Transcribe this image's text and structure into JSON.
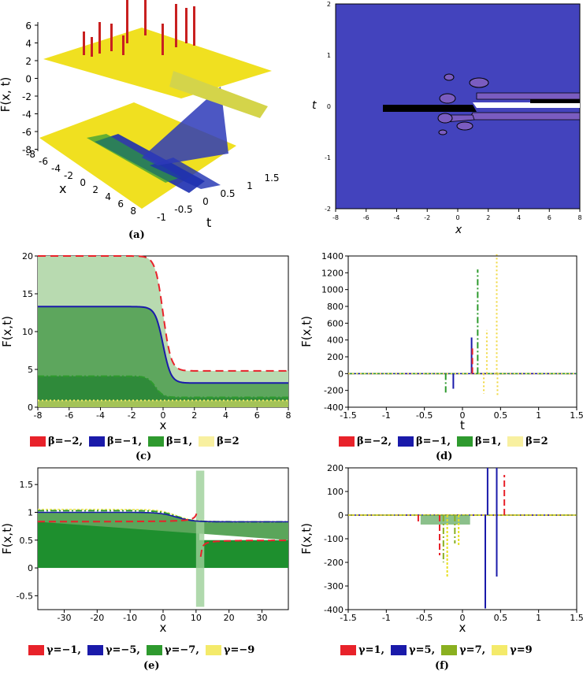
{
  "panels": {
    "a": {
      "caption": "(a)",
      "zlabel": "F(x, t)",
      "xlabel": "x",
      "ylabel": "t",
      "zticks": [
        "6",
        "4",
        "2",
        "0",
        "-2",
        "-4",
        "-6",
        "-8"
      ],
      "xticks": [
        "-8",
        "-6",
        "-4",
        "-2",
        "0",
        "2",
        "4",
        "6",
        "8"
      ],
      "tticks": [
        "1.5",
        "1",
        "0.5",
        "0",
        "-0.5",
        "-1"
      ]
    },
    "b": {
      "xlabel": "x",
      "ylabel": "t",
      "xticks": [
        "-8",
        "-6",
        "-4",
        "-2",
        "0",
        "2",
        "4",
        "6",
        "8"
      ],
      "yticks": [
        "2",
        "1",
        "0",
        "-1",
        "-2"
      ]
    },
    "c": {
      "caption": "(c)",
      "xlabel": "x",
      "ylabel": "F(x,t)"
    },
    "d": {
      "caption": "(d)",
      "xlabel": "t",
      "ylabel": "F(x,t)"
    },
    "e": {
      "caption": "(e)",
      "xlabel": "x",
      "ylabel": "F(x,t)"
    },
    "f": {
      "caption": "(f)",
      "xlabel": "x",
      "ylabel": "F(x,t)"
    }
  },
  "legends": {
    "cd": [
      "β=−2,",
      "β=−1,",
      "β=1,",
      "β=2"
    ],
    "e": [
      "γ=−1,",
      "γ=−5,",
      "γ=−7,",
      "γ=−9"
    ],
    "f": [
      "γ=1,",
      "γ=5,",
      "γ=7,",
      "γ=9"
    ]
  },
  "colors": {
    "red": "#e8222a",
    "blue": "#1a1aaa",
    "green": "#2e9a2e",
    "yellow": "#f4ea6a",
    "lime": "#8ab020",
    "purple": "#7a5cc0",
    "bg3d": "#f0e020",
    "contour_bg": "#4343bd"
  },
  "chart_data": [
    {
      "type": "surface",
      "panel": "a",
      "zlim": [
        -8,
        6
      ],
      "xlim": [
        -8,
        8
      ],
      "tlim": [
        -1,
        1.5
      ]
    },
    {
      "type": "contour",
      "panel": "b",
      "xlim": [
        -8,
        8
      ],
      "ylim": [
        -2,
        2
      ]
    },
    {
      "type": "area",
      "panel": "c",
      "xlim": [
        -8,
        8
      ],
      "ylim": [
        0,
        20
      ],
      "xticks": [
        -8,
        -6,
        -4,
        -2,
        0,
        2,
        4,
        6,
        8
      ],
      "yticks": [
        0,
        5,
        10,
        15,
        20
      ],
      "series": [
        {
          "name": "β=−2",
          "left": 20,
          "right": 4.8,
          "step": 0
        },
        {
          "name": "β=−1",
          "left": 13.3,
          "right": 3.2,
          "step": 0
        },
        {
          "name": "β=1",
          "left": 4.1,
          "right": 1.3,
          "step": -0.5
        },
        {
          "name": "β=2",
          "left": 0.9,
          "right": 0.9,
          "step": 0
        }
      ]
    },
    {
      "type": "line",
      "panel": "d",
      "xlim": [
        -1.5,
        1.5
      ],
      "ylim": [
        -400,
        1400
      ],
      "xticks": [
        -1.5,
        -1,
        -0.5,
        0,
        0.5,
        1,
        1.5
      ],
      "yticks": [
        -400,
        -200,
        0,
        200,
        400,
        600,
        800,
        1000,
        1200,
        1400
      ],
      "spikes": [
        {
          "series": "β=−1",
          "t": 0.12,
          "v": 430
        },
        {
          "series": "β=−1",
          "t": -0.12,
          "v": -180
        },
        {
          "series": "β=−2",
          "t": 0.13,
          "v": 300
        },
        {
          "series": "β=1",
          "t": 0.2,
          "v": 1240
        },
        {
          "series": "β=1",
          "t": -0.22,
          "v": -230
        },
        {
          "series": "β=2",
          "t": 0.45,
          "v": 1420
        },
        {
          "series": "β=2",
          "t": 0.32,
          "v": 520
        },
        {
          "series": "β=2",
          "t": 0.28,
          "v": -240
        },
        {
          "series": "β=2",
          "t": 0.46,
          "v": -260
        }
      ]
    },
    {
      "type": "area",
      "panel": "e",
      "xlim": [
        -38,
        38
      ],
      "ylim": [
        -0.75,
        1.8
      ],
      "xticks": [
        -30,
        -20,
        -10,
        0,
        10,
        20,
        30
      ],
      "yticks": [
        -0.5,
        0,
        0.5,
        1,
        1.5
      ],
      "series": [
        {
          "name": "γ=−1",
          "left": 0.83,
          "right": 0.5,
          "pole": 11
        },
        {
          "name": "γ=−5",
          "left": 1.0,
          "right": 0.83
        },
        {
          "name": "γ=−7",
          "left": 1.03,
          "right": 0.83
        },
        {
          "name": "γ=−9",
          "left": 1.05,
          "right": 0.83
        }
      ]
    },
    {
      "type": "line",
      "panel": "f",
      "xlim": [
        -1.5,
        1.5
      ],
      "ylim": [
        -400,
        200
      ],
      "xticks": [
        -1.5,
        -1,
        -0.5,
        0,
        0.5,
        1,
        1.5
      ],
      "yticks": [
        -400,
        -300,
        -200,
        -100,
        0,
        100,
        200
      ],
      "spikes": [
        {
          "series": "γ=1",
          "t": -0.58,
          "v": -30
        },
        {
          "series": "γ=1",
          "t": 0.55,
          "v": 170
        },
        {
          "series": "γ=1",
          "t": -0.3,
          "v": -170
        },
        {
          "series": "γ=5",
          "t": 0.3,
          "v": -395
        },
        {
          "series": "γ=5",
          "t": 0.33,
          "v": 200
        },
        {
          "series": "γ=5",
          "t": 0.45,
          "v": -260
        },
        {
          "series": "γ=5",
          "t": 0.45,
          "v": 200
        },
        {
          "series": "γ=7",
          "t": -0.25,
          "v": -200
        },
        {
          "series": "γ=7",
          "t": -0.1,
          "v": -120
        },
        {
          "series": "γ=9",
          "t": -0.2,
          "v": -265
        },
        {
          "series": "γ=9",
          "t": -0.05,
          "v": -130
        }
      ]
    }
  ]
}
